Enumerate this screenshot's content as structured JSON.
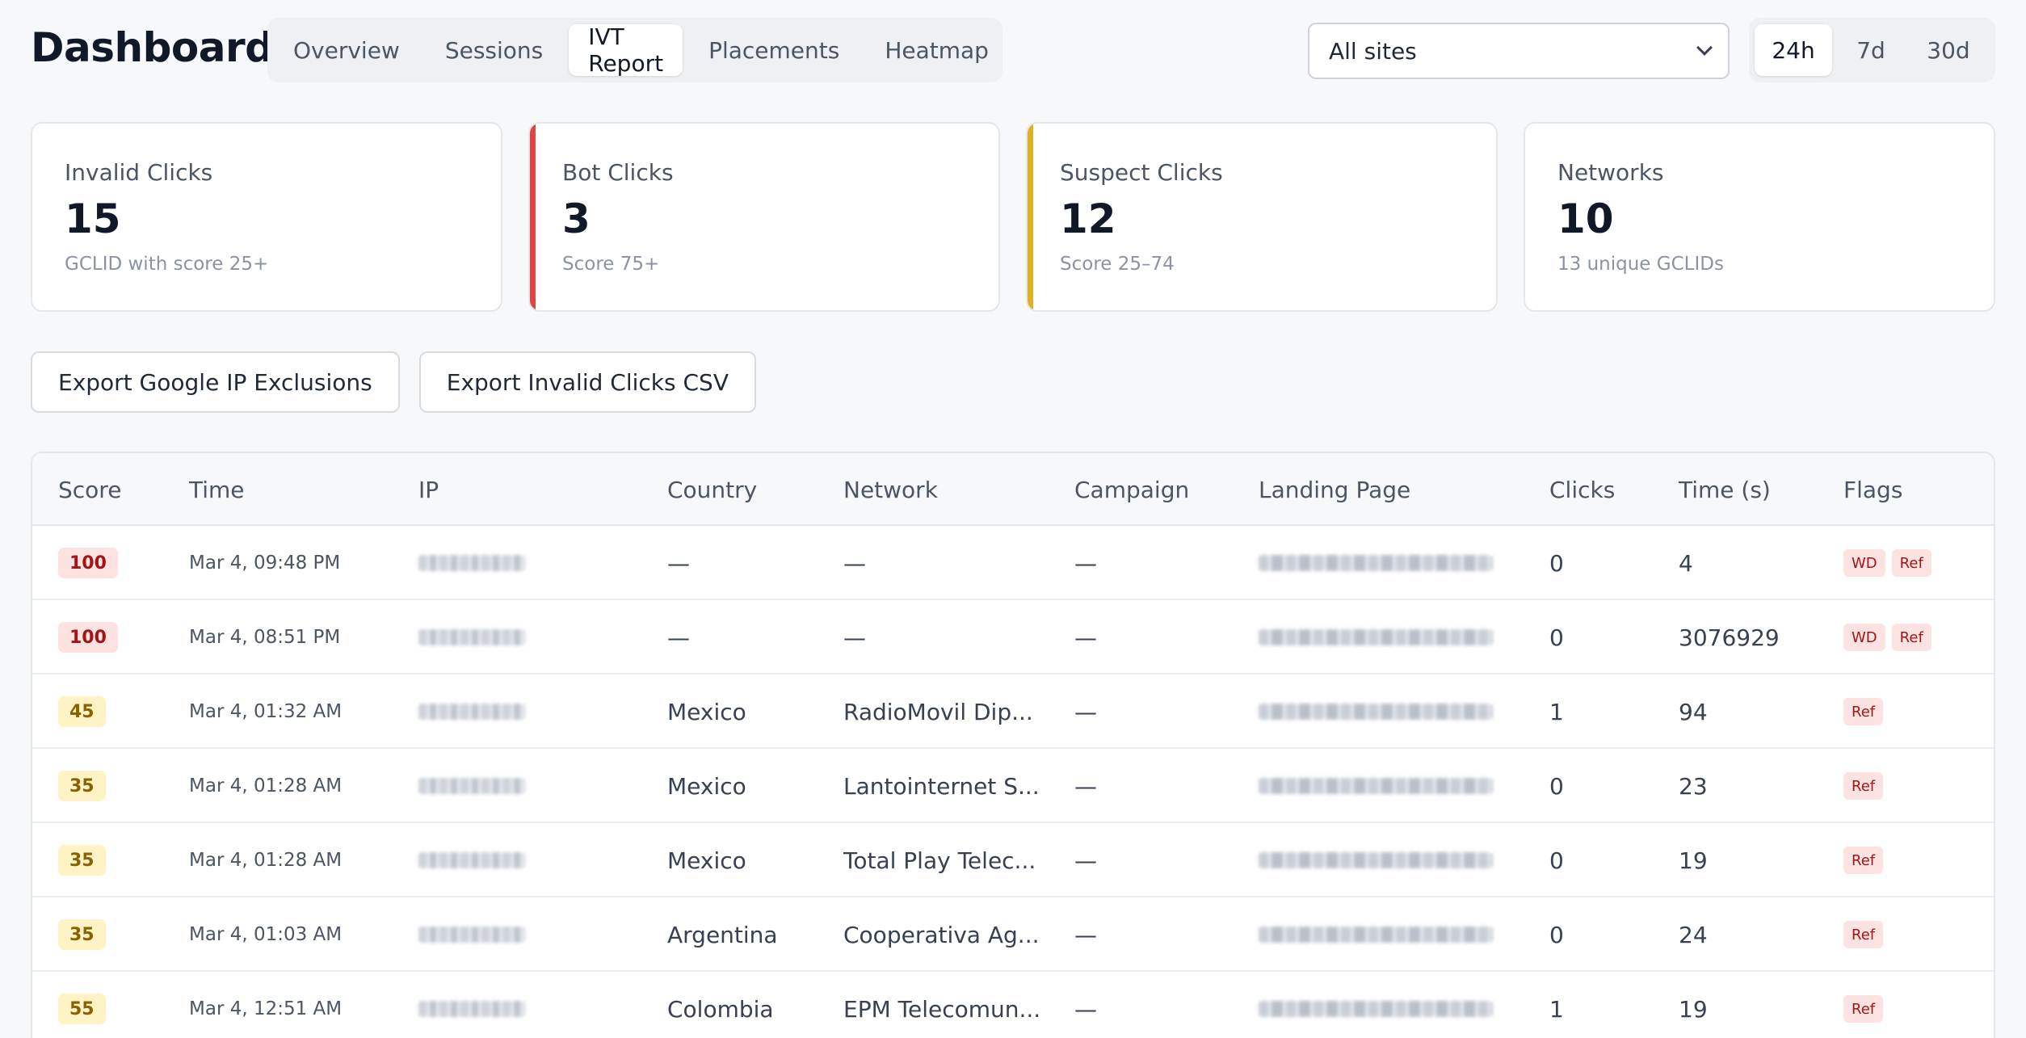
{
  "header": {
    "title": "Dashboard",
    "tabs": [
      {
        "label": "Overview",
        "active": false
      },
      {
        "label": "Sessions",
        "active": false
      },
      {
        "label": "IVT Report",
        "active": true
      },
      {
        "label": "Placements",
        "active": false
      },
      {
        "label": "Heatmap",
        "active": false
      }
    ],
    "site_filter": {
      "selected": "All sites",
      "icon": "chevron-down-icon"
    },
    "ranges": [
      {
        "label": "24h",
        "active": true
      },
      {
        "label": "7d",
        "active": false
      },
      {
        "label": "30d",
        "active": false
      }
    ]
  },
  "cards": [
    {
      "label": "Invalid Clicks",
      "value": "15",
      "sub": "GCLID with score 25+",
      "accent": ""
    },
    {
      "label": "Bot Clicks",
      "value": "3",
      "sub": "Score 75+",
      "accent": "#e04545"
    },
    {
      "label": "Suspect Clicks",
      "value": "12",
      "sub": "Score 25–74",
      "accent": "#e0b020"
    },
    {
      "label": "Networks",
      "value": "10",
      "sub": "13 unique GCLIDs",
      "accent": ""
    }
  ],
  "actions": {
    "export_ip": "Export Google IP Exclusions",
    "export_csv": "Export Invalid Clicks CSV"
  },
  "table": {
    "columns": [
      "Score",
      "Time",
      "IP",
      "Country",
      "Network",
      "Campaign",
      "Landing Page",
      "Clicks",
      "Time (s)",
      "Flags"
    ],
    "rows": [
      {
        "score": "100",
        "level": "high",
        "time": "Mar 4, 09:48 PM",
        "country": "—",
        "network": "—",
        "campaign": "—",
        "clicks": "0",
        "time_s": "4",
        "flags": [
          "WD",
          "Ref"
        ]
      },
      {
        "score": "100",
        "level": "high",
        "time": "Mar 4, 08:51 PM",
        "country": "—",
        "network": "—",
        "campaign": "—",
        "clicks": "0",
        "time_s": "3076929",
        "flags": [
          "WD",
          "Ref"
        ]
      },
      {
        "score": "45",
        "level": "mid",
        "time": "Mar 4, 01:32 AM",
        "country": "Mexico",
        "network": "RadioMovil Dip...",
        "campaign": "—",
        "clicks": "1",
        "time_s": "94",
        "flags": [
          "Ref"
        ]
      },
      {
        "score": "35",
        "level": "mid",
        "time": "Mar 4, 01:28 AM",
        "country": "Mexico",
        "network": "Lantointernet S...",
        "campaign": "—",
        "clicks": "0",
        "time_s": "23",
        "flags": [
          "Ref"
        ]
      },
      {
        "score": "35",
        "level": "mid",
        "time": "Mar 4, 01:28 AM",
        "country": "Mexico",
        "network": "Total Play Telec...",
        "campaign": "—",
        "clicks": "0",
        "time_s": "19",
        "flags": [
          "Ref"
        ]
      },
      {
        "score": "35",
        "level": "mid",
        "time": "Mar 4, 01:03 AM",
        "country": "Argentina",
        "network": "Cooperativa Ag...",
        "campaign": "—",
        "clicks": "0",
        "time_s": "24",
        "flags": [
          "Ref"
        ]
      },
      {
        "score": "55",
        "level": "mid",
        "time": "Mar 4, 12:51 AM",
        "country": "Colombia",
        "network": "EPM Telecomun...",
        "campaign": "—",
        "clicks": "1",
        "time_s": "19",
        "flags": [
          "Ref"
        ]
      }
    ]
  }
}
